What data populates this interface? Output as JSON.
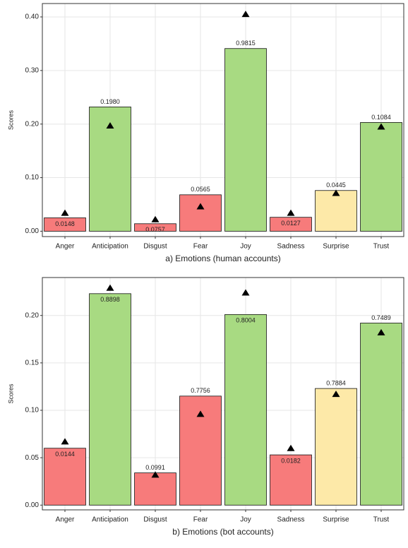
{
  "chart_data": [
    {
      "type": "bar",
      "x_label": "a) Emotions (human accounts)",
      "y_label": "Scores",
      "categories": [
        "Anger",
        "Anticipation",
        "Disgust",
        "Fear",
        "Joy",
        "Sadness",
        "Surprise",
        "Trust"
      ],
      "values": [
        0.025,
        0.232,
        0.014,
        0.068,
        0.341,
        0.026,
        0.076,
        0.203
      ],
      "bar_labels": [
        "0.0148",
        "0.1980",
        "0.0757",
        "0.0565",
        "0.9815",
        "0.0127",
        "0.0445",
        "0.1084"
      ],
      "markers": [
        0.034,
        0.197,
        0.022,
        0.046,
        0.405,
        0.034,
        0.071,
        0.195
      ],
      "colors": [
        "#f77b7b",
        "#a8da82",
        "#f77b7b",
        "#f77b7b",
        "#a8da82",
        "#f77b7b",
        "#fde9a8",
        "#a8da82"
      ],
      "marker_color": "#000000",
      "ylim": [
        -0.01,
        0.425
      ],
      "yticks": [
        {
          "value": 0,
          "label": "0.00"
        },
        {
          "value": 0.1,
          "label": "0.10"
        },
        {
          "value": 0.2,
          "label": "0.20"
        },
        {
          "value": 0.3,
          "label": "0.30"
        },
        {
          "value": 0.4,
          "label": "0.40"
        }
      ],
      "grid": true
    },
    {
      "type": "bar",
      "x_label": "b) Emotions (bot accounts)",
      "y_label": "Scores",
      "categories": [
        "Anger",
        "Anticipation",
        "Disgust",
        "Fear",
        "Joy",
        "Sadness",
        "Surprise",
        "Trust"
      ],
      "values": [
        0.06,
        0.223,
        0.034,
        0.115,
        0.201,
        0.053,
        0.123,
        0.192
      ],
      "bar_labels": [
        "0.0144",
        "0.8898",
        "0.0991",
        "0.7756",
        "0.8004",
        "0.0182",
        "0.7884",
        "0.7489"
      ],
      "markers": [
        0.067,
        0.229,
        0.032,
        0.096,
        0.224,
        0.06,
        0.117,
        0.182
      ],
      "colors": [
        "#f77b7b",
        "#a8da82",
        "#f77b7b",
        "#f77b7b",
        "#a8da82",
        "#f77b7b",
        "#fde9a8",
        "#a8da82"
      ],
      "marker_color": "#000000",
      "ylim": [
        -0.005,
        0.24
      ],
      "yticks": [
        {
          "value": 0,
          "label": "0.00"
        },
        {
          "value": 0.05,
          "label": "0.05"
        },
        {
          "value": 0.1,
          "label": "0.10"
        },
        {
          "value": 0.15,
          "label": "0.15"
        },
        {
          "value": 0.2,
          "label": "0.20"
        }
      ],
      "grid": true
    }
  ]
}
